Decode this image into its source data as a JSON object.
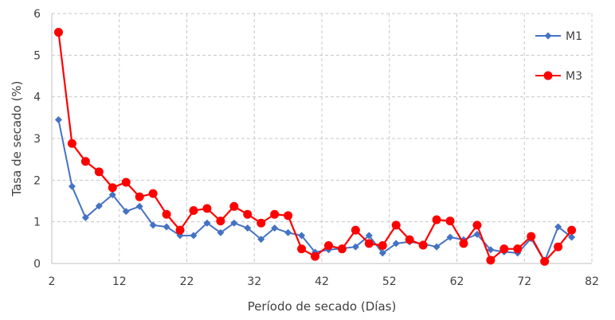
{
  "chart_data": {
    "type": "line",
    "title": "",
    "xlabel": "Período de secado (Días)",
    "ylabel": "Tasa de secado (%)",
    "xlim": [
      2,
      82
    ],
    "ylim": [
      0,
      6
    ],
    "xticks": [
      2,
      12,
      22,
      32,
      42,
      52,
      62,
      72,
      82
    ],
    "yticks": [
      0,
      1,
      2,
      3,
      4,
      5,
      6
    ],
    "grid": true,
    "legend_position": "top-right",
    "series": [
      {
        "name": "M1",
        "color": "#4472C4",
        "marker": "diamond",
        "x": [
          3,
          5,
          7,
          9,
          11,
          13,
          15,
          17,
          19,
          21,
          23,
          25,
          27,
          29,
          31,
          33,
          35,
          37,
          39,
          41,
          43,
          45,
          47,
          49,
          51,
          53,
          55,
          57,
          59,
          61,
          63,
          65,
          67,
          69,
          71,
          73,
          75,
          77,
          79
        ],
        "y": [
          3.45,
          1.85,
          1.1,
          1.38,
          1.65,
          1.25,
          1.37,
          0.92,
          0.88,
          0.67,
          0.67,
          0.97,
          0.74,
          0.97,
          0.85,
          0.58,
          0.85,
          0.74,
          0.67,
          0.27,
          0.33,
          0.36,
          0.4,
          0.67,
          0.25,
          0.48,
          0.52,
          0.47,
          0.4,
          0.63,
          0.57,
          0.7,
          0.33,
          0.28,
          0.25,
          0.6,
          0.05,
          0.88,
          0.63
        ]
      },
      {
        "name": "M3",
        "color": "#FF0000",
        "marker": "circle",
        "x": [
          3,
          5,
          7,
          9,
          11,
          13,
          15,
          17,
          19,
          21,
          23,
          25,
          27,
          29,
          31,
          33,
          35,
          37,
          39,
          41,
          43,
          45,
          47,
          49,
          51,
          53,
          55,
          57,
          59,
          61,
          63,
          65,
          67,
          69,
          71,
          73,
          75,
          77,
          79
        ],
        "y": [
          5.55,
          2.88,
          2.45,
          2.2,
          1.82,
          1.95,
          1.6,
          1.68,
          1.18,
          0.8,
          1.27,
          1.32,
          1.02,
          1.37,
          1.18,
          0.97,
          1.18,
          1.15,
          0.35,
          0.17,
          0.43,
          0.35,
          0.8,
          0.48,
          0.43,
          0.92,
          0.57,
          0.44,
          1.05,
          1.02,
          0.48,
          0.92,
          0.08,
          0.35,
          0.35,
          0.65,
          0.05,
          0.4,
          0.8
        ]
      }
    ]
  }
}
